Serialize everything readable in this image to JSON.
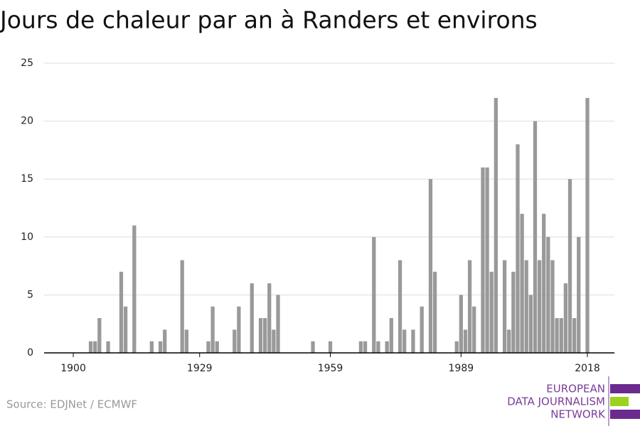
{
  "chart_data": {
    "type": "bar",
    "title": "Jours de chaleur par an à Randers et environs",
    "source": "Source: EDJNet / ECMWF",
    "logo": [
      "EUROPEAN",
      "DATA JOURNALISM",
      "NETWORK"
    ],
    "color": "#999999",
    "x": [
      1900,
      1901,
      1902,
      1903,
      1904,
      1905,
      1906,
      1907,
      1908,
      1909,
      1910,
      1911,
      1912,
      1913,
      1914,
      1915,
      1916,
      1917,
      1918,
      1919,
      1920,
      1921,
      1922,
      1923,
      1924,
      1925,
      1926,
      1927,
      1928,
      1929,
      1930,
      1931,
      1932,
      1933,
      1934,
      1935,
      1936,
      1937,
      1938,
      1939,
      1940,
      1941,
      1942,
      1943,
      1944,
      1945,
      1946,
      1947,
      1948,
      1949,
      1950,
      1951,
      1952,
      1953,
      1954,
      1955,
      1956,
      1957,
      1958,
      1959,
      1960,
      1961,
      1962,
      1963,
      1964,
      1965,
      1966,
      1967,
      1968,
      1969,
      1970,
      1971,
      1972,
      1973,
      1974,
      1975,
      1976,
      1977,
      1978,
      1979,
      1980,
      1981,
      1982,
      1983,
      1984,
      1985,
      1986,
      1987,
      1988,
      1989,
      1990,
      1991,
      1992,
      1993,
      1994,
      1995,
      1996,
      1997,
      1998,
      1999,
      2000,
      2001,
      2002,
      2003,
      2004,
      2005,
      2006,
      2007,
      2008,
      2009,
      2010,
      2011,
      2012,
      2013,
      2014,
      2015,
      2016,
      2017,
      2018
    ],
    "values": [
      0,
      0,
      0,
      0,
      1,
      1,
      3,
      0,
      1,
      0,
      0,
      7,
      4,
      0,
      11,
      0,
      0,
      0,
      1,
      0,
      1,
      2,
      0,
      0,
      0,
      8,
      2,
      0,
      0,
      0,
      0,
      1,
      4,
      1,
      0,
      0,
      0,
      2,
      4,
      0,
      0,
      6,
      0,
      3,
      3,
      6,
      2,
      5,
      0,
      0,
      0,
      0,
      0,
      0,
      0,
      1,
      0,
      0,
      0,
      1,
      0,
      0,
      0,
      0,
      0,
      0,
      1,
      1,
      0,
      10,
      1,
      0,
      1,
      3,
      0,
      8,
      2,
      0,
      2,
      0,
      4,
      0,
      15,
      7,
      0,
      0,
      0,
      0,
      1,
      5,
      2,
      8,
      4,
      0,
      16,
      16,
      7,
      22,
      0,
      8,
      2,
      7,
      18,
      12,
      8,
      5,
      20,
      8,
      12,
      10,
      8,
      3,
      3,
      6,
      15,
      3,
      10,
      0,
      22
    ],
    "xlim": [
      1893.3,
      2024.2
    ],
    "xticks": [
      1900,
      1929,
      1959,
      1989,
      2018
    ],
    "ylim": [
      0,
      25
    ],
    "yticks": [
      0,
      5,
      10,
      15,
      20,
      25
    ],
    "grid": true
  }
}
